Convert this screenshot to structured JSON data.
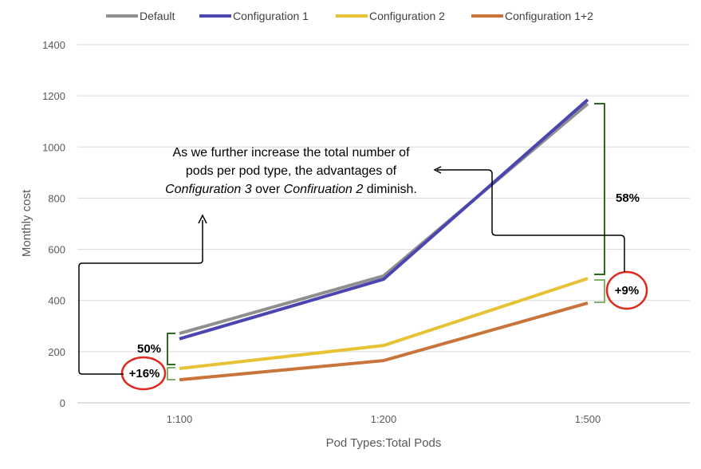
{
  "chart_data": {
    "type": "line",
    "title": "",
    "xlabel": "Pod Types:Total Pods",
    "ylabel": "Monthly cost",
    "categories": [
      "1:100",
      "1:200",
      "1:500"
    ],
    "ylim": [
      0,
      1400
    ],
    "yticks": [
      0,
      200,
      400,
      600,
      800,
      1000,
      1200,
      1400
    ],
    "grid": true,
    "legend": "top",
    "series": [
      {
        "name": "Default",
        "color": "#8f8f8f",
        "values": [
          271,
          496,
          1169
        ]
      },
      {
        "name": "Configuration 1",
        "color": "#4b45b0",
        "values": [
          250,
          483,
          1185
        ]
      },
      {
        "name": "Configuration 2",
        "color": "#e6c234",
        "values": [
          134,
          224,
          486
        ]
      },
      {
        "name": "Configuration 1+2",
        "color": "#c8743a",
        "values": [
          90,
          165,
          390
        ]
      }
    ],
    "annotations": {
      "note_line1": "As we further increase the total number of",
      "note_line2": "pods per pod type, the advantages of",
      "note_italic1": "Configuration 3",
      "note_mid": " over ",
      "note_italic2": "Confiruation 2",
      "note_end": " diminish.",
      "left_gap": "50%",
      "left_circle": "+16%",
      "right_gap": "58%",
      "right_circle": "+9%",
      "circle_color": "#e0281e",
      "bracket_color": "#2f6b1f",
      "small_bracket_color": "#7fb36a"
    }
  }
}
